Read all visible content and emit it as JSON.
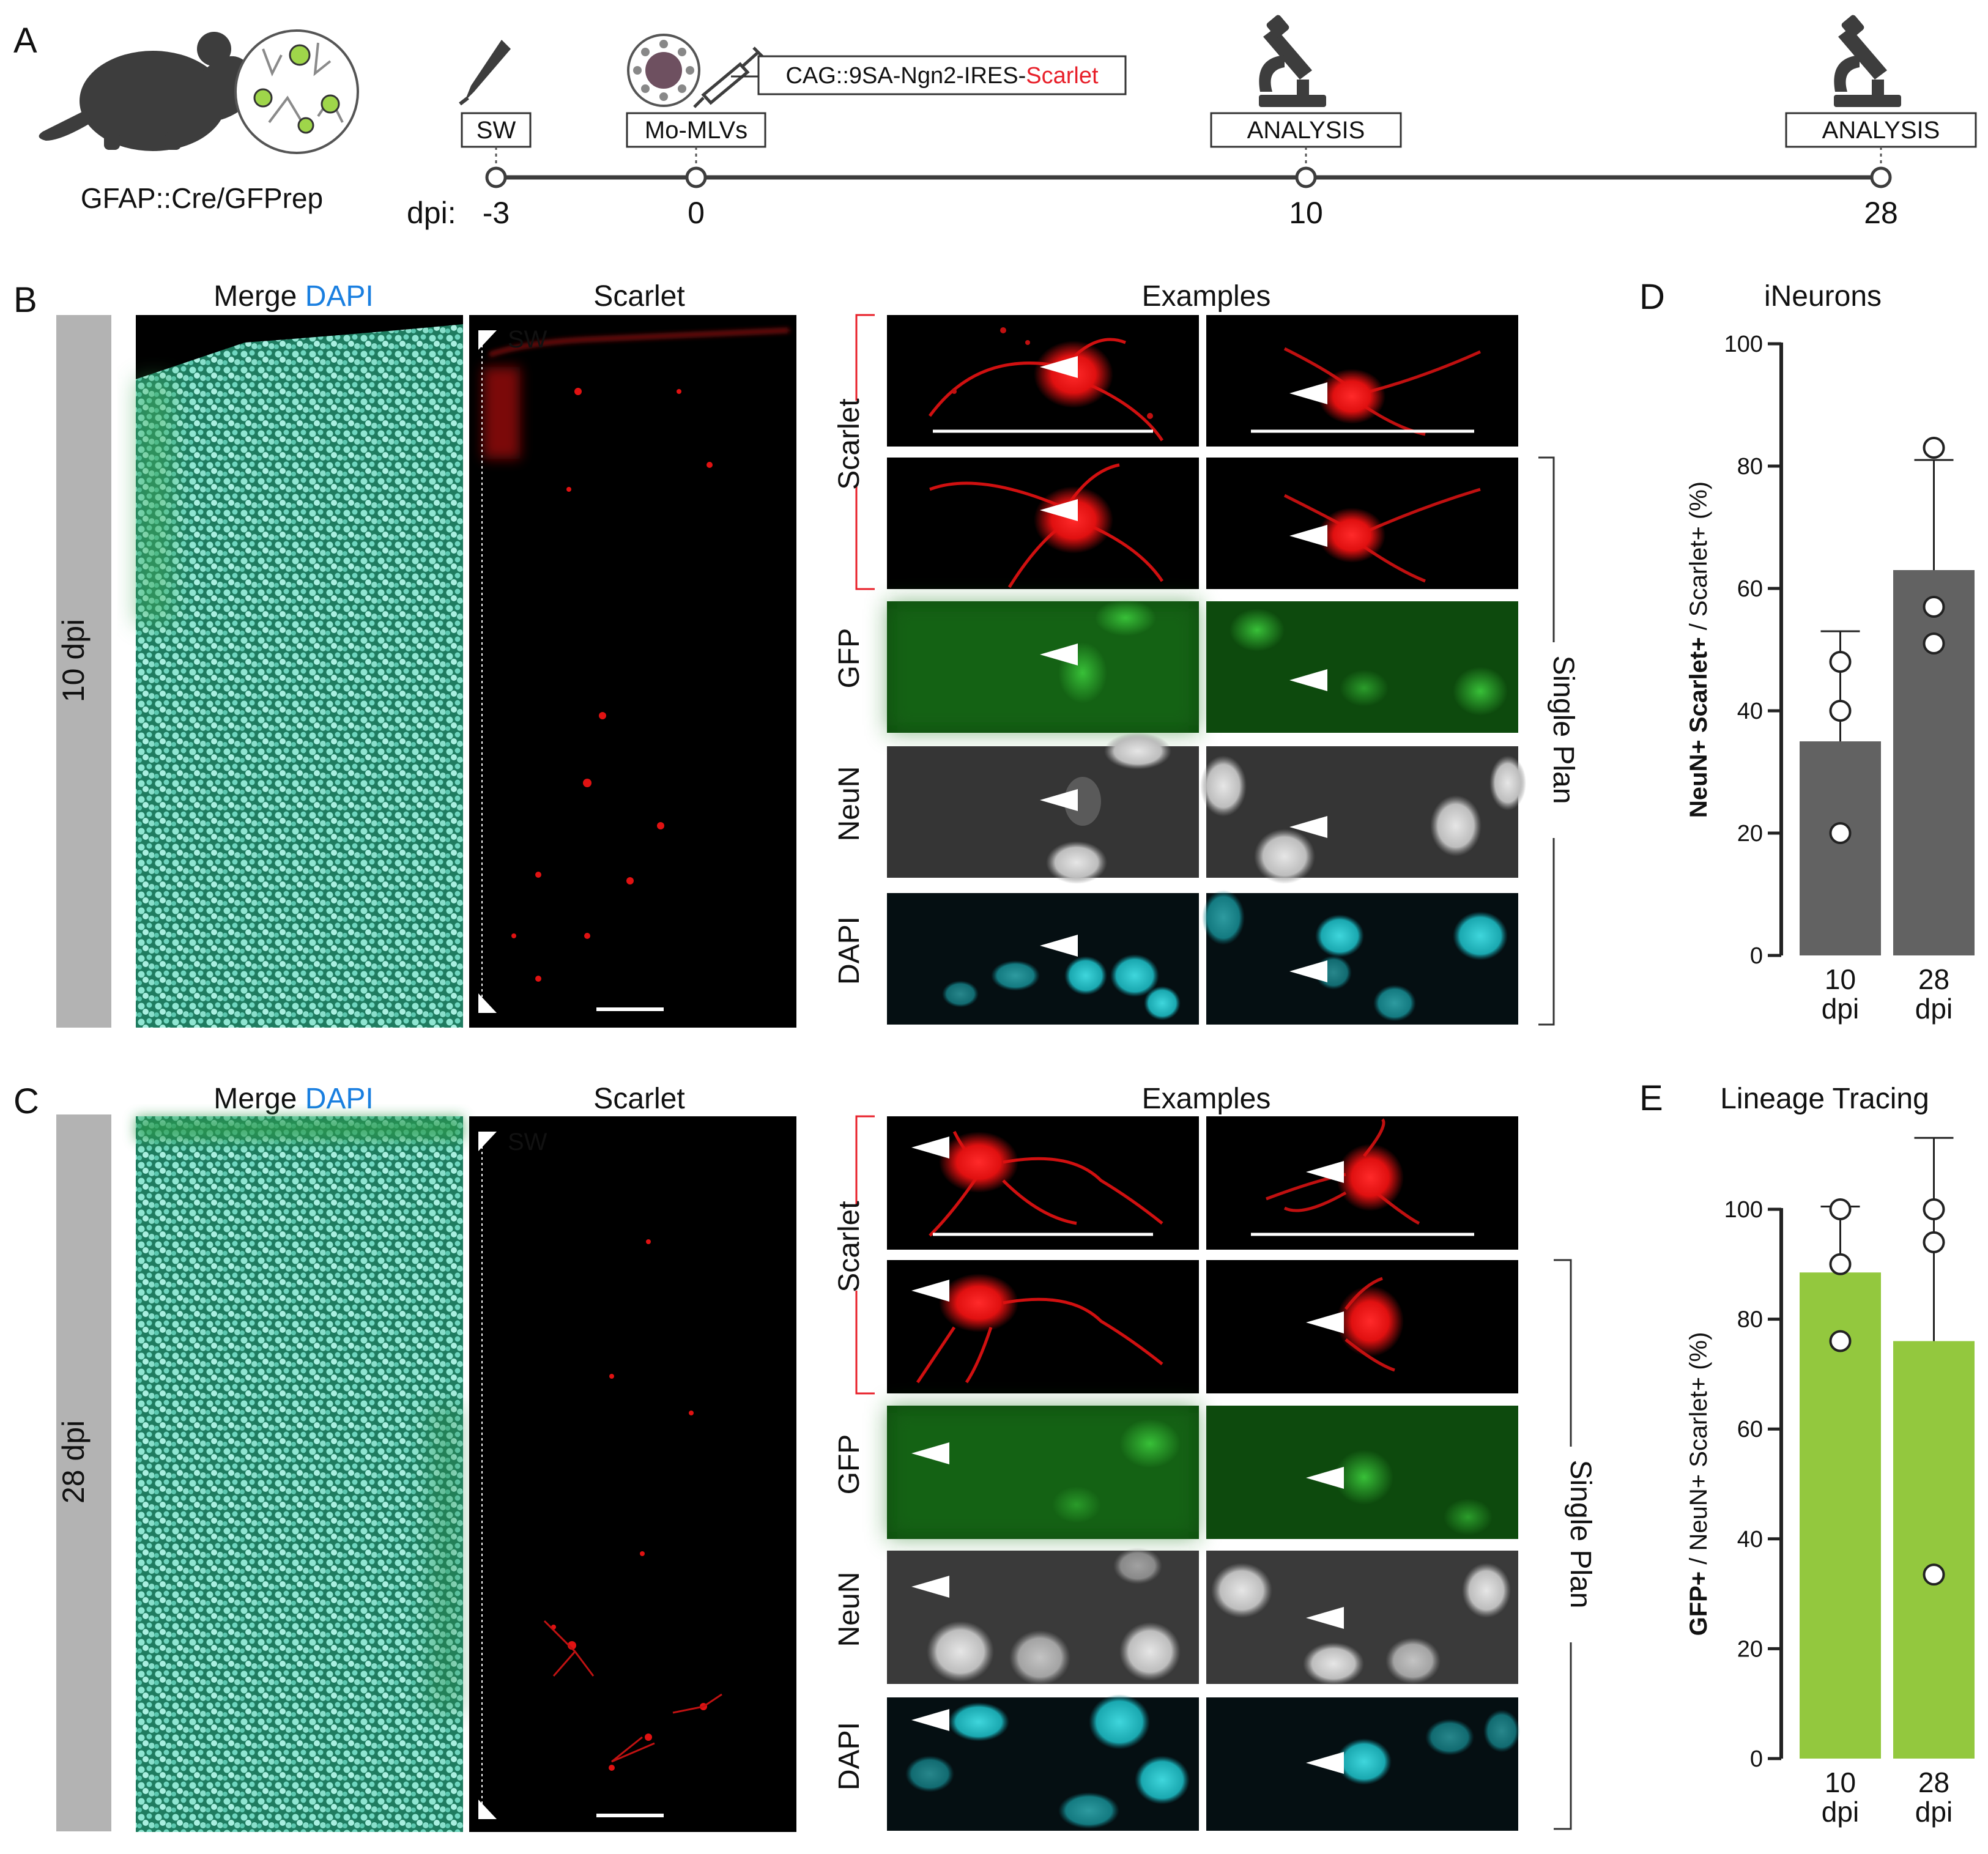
{
  "panel_letters": [
    "A",
    "B",
    "C",
    "D",
    "E"
  ],
  "panel_a": {
    "mouse_label": "GFAP::Cre/GFPrep",
    "construct_prefix": "CAG::9SA-Ngn2-IRES-",
    "construct_suffix": "Scarlet",
    "sw_box": "SW",
    "mlv_box": "Mo-MLVs",
    "analysis_box": "ANALYSIS",
    "dpi_label": "dpi:",
    "timepoints": [
      "-3",
      "0",
      "10",
      "28"
    ]
  },
  "panel_b": {
    "row_label": "10 dpi",
    "merge_word": "Merge",
    "dapi_word": "DAPI",
    "scarlet_title": "Scarlet",
    "sw_marker": "SW",
    "examples_title": "Examples",
    "channels": [
      "Scarlet",
      "GFP",
      "NeuN",
      "DAPI"
    ],
    "single_plan": "Single Plan"
  },
  "panel_c": {
    "row_label": "28 dpi",
    "merge_word": "Merge",
    "dapi_word": "DAPI",
    "scarlet_title": "Scarlet",
    "sw_marker": "SW",
    "examples_title": "Examples",
    "channels": [
      "Scarlet",
      "GFP",
      "NeuN",
      "DAPI"
    ],
    "single_plan": "Single Plan"
  },
  "colors": {
    "scarlet": "#e8202a",
    "dapi": "#1a7fe0",
    "gfp": "#3aa83a",
    "neun": "#777777",
    "bar_d": "#626262",
    "bar_e": "#93c83e",
    "row_band": "#b3b3b3"
  },
  "chart_data": [
    {
      "type": "bar",
      "panel": "D",
      "title": "iNeurons",
      "ylabel_bold": "NeuN+ Scarlet+",
      "ylabel_rest": " / Scarlet+ (%)",
      "categories": [
        [
          "10",
          "dpi"
        ],
        [
          "28",
          "dpi"
        ]
      ],
      "values": [
        35,
        63
      ],
      "errors": [
        18,
        18
      ],
      "points": [
        [
          48,
          40,
          20
        ],
        [
          83,
          57,
          51
        ]
      ],
      "ylim": [
        0,
        100
      ],
      "yticks": [
        0,
        20,
        40,
        60,
        80,
        100
      ],
      "color": "#626262"
    },
    {
      "type": "bar",
      "panel": "E",
      "title": "Lineage Tracing",
      "ylabel_bold": "GFP+",
      "ylabel_rest": " / NeuN+ Scarlet+ (%)",
      "categories": [
        [
          "10",
          "dpi"
        ],
        [
          "28",
          "dpi"
        ]
      ],
      "values": [
        88.5,
        76
      ],
      "errors": [
        12,
        37
      ],
      "points": [
        [
          100,
          90,
          76
        ],
        [
          100,
          94,
          33.5
        ]
      ],
      "ylim": [
        0,
        100
      ],
      "yticks": [
        0,
        20,
        40,
        60,
        80,
        100
      ],
      "color": "#93c83e"
    }
  ]
}
